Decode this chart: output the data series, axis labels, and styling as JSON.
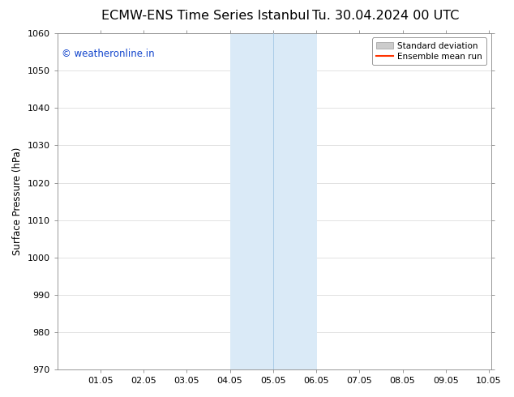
{
  "title_left": "ECMW-ENS Time Series Istanbul",
  "title_right": "Tu. 30.04.2024 00 UTC",
  "ylabel": "Surface Pressure (hPa)",
  "ylim": [
    970,
    1060
  ],
  "yticks": [
    970,
    980,
    990,
    1000,
    1010,
    1020,
    1030,
    1040,
    1050,
    1060
  ],
  "xlim": [
    0.0,
    10.05
  ],
  "xticks": [
    1.0,
    2.0,
    3.0,
    4.0,
    5.0,
    6.0,
    7.0,
    8.0,
    9.0,
    10.0
  ],
  "xticklabels": [
    "01.05",
    "02.05",
    "03.05",
    "04.05",
    "05.05",
    "06.05",
    "07.05",
    "08.05",
    "09.05",
    "10.05"
  ],
  "shaded_region_x1": 4.0,
  "shaded_region_x2": 6.0,
  "shaded_region_color": "#daeaf7",
  "shaded_region_edge_color": "#aacde8",
  "vertical_line_x": 5.0,
  "watermark_text": "© weatheronline.in",
  "watermark_color": "#1144cc",
  "legend_std_label": "Standard deviation",
  "legend_mean_label": "Ensemble mean run",
  "legend_std_color": "#cccccc",
  "legend_mean_color": "#ff3300",
  "background_color": "#ffffff",
  "font_color": "#000000",
  "title_fontsize": 11.5,
  "tick_fontsize": 8,
  "ylabel_fontsize": 8.5,
  "watermark_fontsize": 8.5,
  "legend_fontsize": 7.5
}
